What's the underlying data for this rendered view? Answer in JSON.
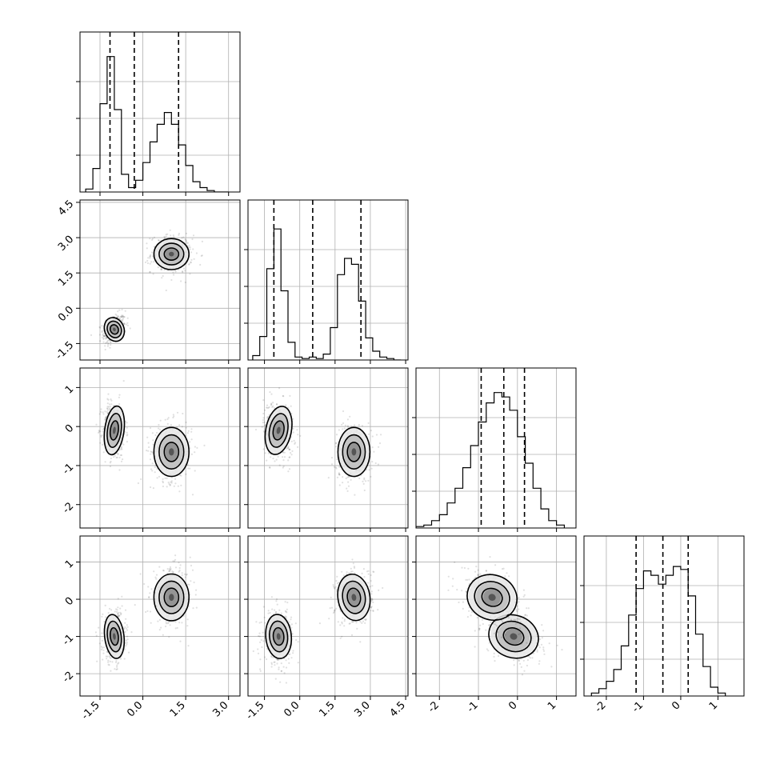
{
  "chart_data": {
    "type": "corner",
    "parameters": 4,
    "axes": [
      {
        "range": [
          -2.2,
          3.4
        ],
        "ticks": [
          -1.5,
          0.0,
          1.5,
          3.0
        ],
        "tick_labels": [
          "-1.5",
          "0.0",
          "1.5",
          "3.0"
        ]
      },
      {
        "range": [
          -2.2,
          4.6
        ],
        "ticks": [
          -1.5,
          0.0,
          1.5,
          3.0,
          4.5
        ],
        "tick_labels": [
          "-1.5",
          "0.0",
          "1.5",
          "3.0",
          "4.5"
        ]
      },
      {
        "range": [
          -2.6,
          1.5
        ],
        "ticks": [
          -2,
          -1,
          0,
          1
        ],
        "tick_labels": [
          "-2",
          "-1",
          "0",
          "1"
        ]
      },
      {
        "range": [
          -2.6,
          1.7
        ],
        "ticks": [
          -2,
          -1,
          0,
          1
        ],
        "tick_labels": [
          "-2",
          "-1",
          "0",
          "1"
        ]
      }
    ],
    "histograms": [
      {
        "bin_edges": [
          -2.0,
          -1.75,
          -1.5,
          -1.25,
          -1.0,
          -0.75,
          -0.5,
          -0.25,
          0.0,
          0.25,
          0.5,
          0.75,
          1.0,
          1.25,
          1.5,
          1.75,
          2.0,
          2.25,
          2.5,
          2.75,
          3.0
        ],
        "counts": [
          0.02,
          0.16,
          0.6,
          0.92,
          0.56,
          0.12,
          0.03,
          0.08,
          0.2,
          0.34,
          0.46,
          0.54,
          0.46,
          0.32,
          0.18,
          0.07,
          0.03,
          0.01,
          0.0,
          0.0
        ],
        "quantiles": [
          -1.15,
          -0.3,
          1.25
        ],
        "ymax": 1.0
      },
      {
        "bin_edges": [
          -2.0,
          -1.7,
          -1.4,
          -1.1,
          -0.8,
          -0.5,
          -0.2,
          0.1,
          0.4,
          0.7,
          1.0,
          1.3,
          1.6,
          1.9,
          2.2,
          2.5,
          2.8,
          3.1,
          3.4,
          3.7,
          4.0,
          4.3
        ],
        "counts": [
          0.03,
          0.16,
          0.62,
          0.89,
          0.47,
          0.12,
          0.02,
          0.01,
          0.02,
          0.01,
          0.04,
          0.22,
          0.58,
          0.69,
          0.65,
          0.4,
          0.15,
          0.06,
          0.02,
          0.01,
          0.0
        ],
        "quantiles": [
          -1.1,
          0.55,
          2.6
        ],
        "ymax": 1.0
      },
      {
        "bin_edges": [
          -2.6,
          -2.4,
          -2.2,
          -2.0,
          -1.8,
          -1.6,
          -1.4,
          -1.2,
          -1.0,
          -0.8,
          -0.6,
          -0.4,
          -0.2,
          0.0,
          0.2,
          0.4,
          0.6,
          0.8,
          1.0,
          1.2
        ],
        "counts": [
          0.01,
          0.02,
          0.05,
          0.09,
          0.17,
          0.27,
          0.41,
          0.56,
          0.72,
          0.85,
          0.92,
          0.89,
          0.8,
          0.62,
          0.44,
          0.27,
          0.13,
          0.05,
          0.02
        ],
        "quantiles": [
          -0.93,
          -0.35,
          0.18
        ],
        "ymax": 1.0
      },
      {
        "bin_edges": [
          -2.4,
          -2.2,
          -2.0,
          -1.8,
          -1.6,
          -1.4,
          -1.2,
          -1.0,
          -0.8,
          -0.6,
          -0.4,
          -0.2,
          0.0,
          0.2,
          0.4,
          0.6,
          0.8,
          1.0,
          1.2
        ],
        "counts": [
          0.02,
          0.05,
          0.1,
          0.18,
          0.34,
          0.55,
          0.73,
          0.85,
          0.82,
          0.76,
          0.82,
          0.88,
          0.86,
          0.68,
          0.42,
          0.2,
          0.06,
          0.02
        ],
        "quantiles": [
          -1.2,
          -0.48,
          0.2
        ],
        "ymax": 1.0
      }
    ],
    "clusters": [
      {
        "center": [
          -1.0,
          -0.9,
          -0.1,
          -1.0
        ],
        "spread": [
          0.2,
          0.32,
          0.38,
          0.36
        ],
        "corr": {
          "1-2": 0.3,
          "1-3": -0.05,
          "2-3": -0.1,
          "1-4": 0.05,
          "2-4": 0.05,
          "3-4": -0.4
        },
        "weight": 0.5
      },
      {
        "center": [
          1.0,
          2.3,
          -0.65,
          0.05
        ],
        "spread": [
          0.36,
          0.4,
          0.38,
          0.38
        ],
        "corr": {
          "1-2": 0.0,
          "1-3": 0.0,
          "2-3": 0.0,
          "1-4": 0.0,
          "2-4": 0.1,
          "3-4": -0.4
        },
        "weight": 0.5
      }
    ],
    "contour_levels_sigma": [
      0.6,
      1.1,
      1.6
    ]
  }
}
